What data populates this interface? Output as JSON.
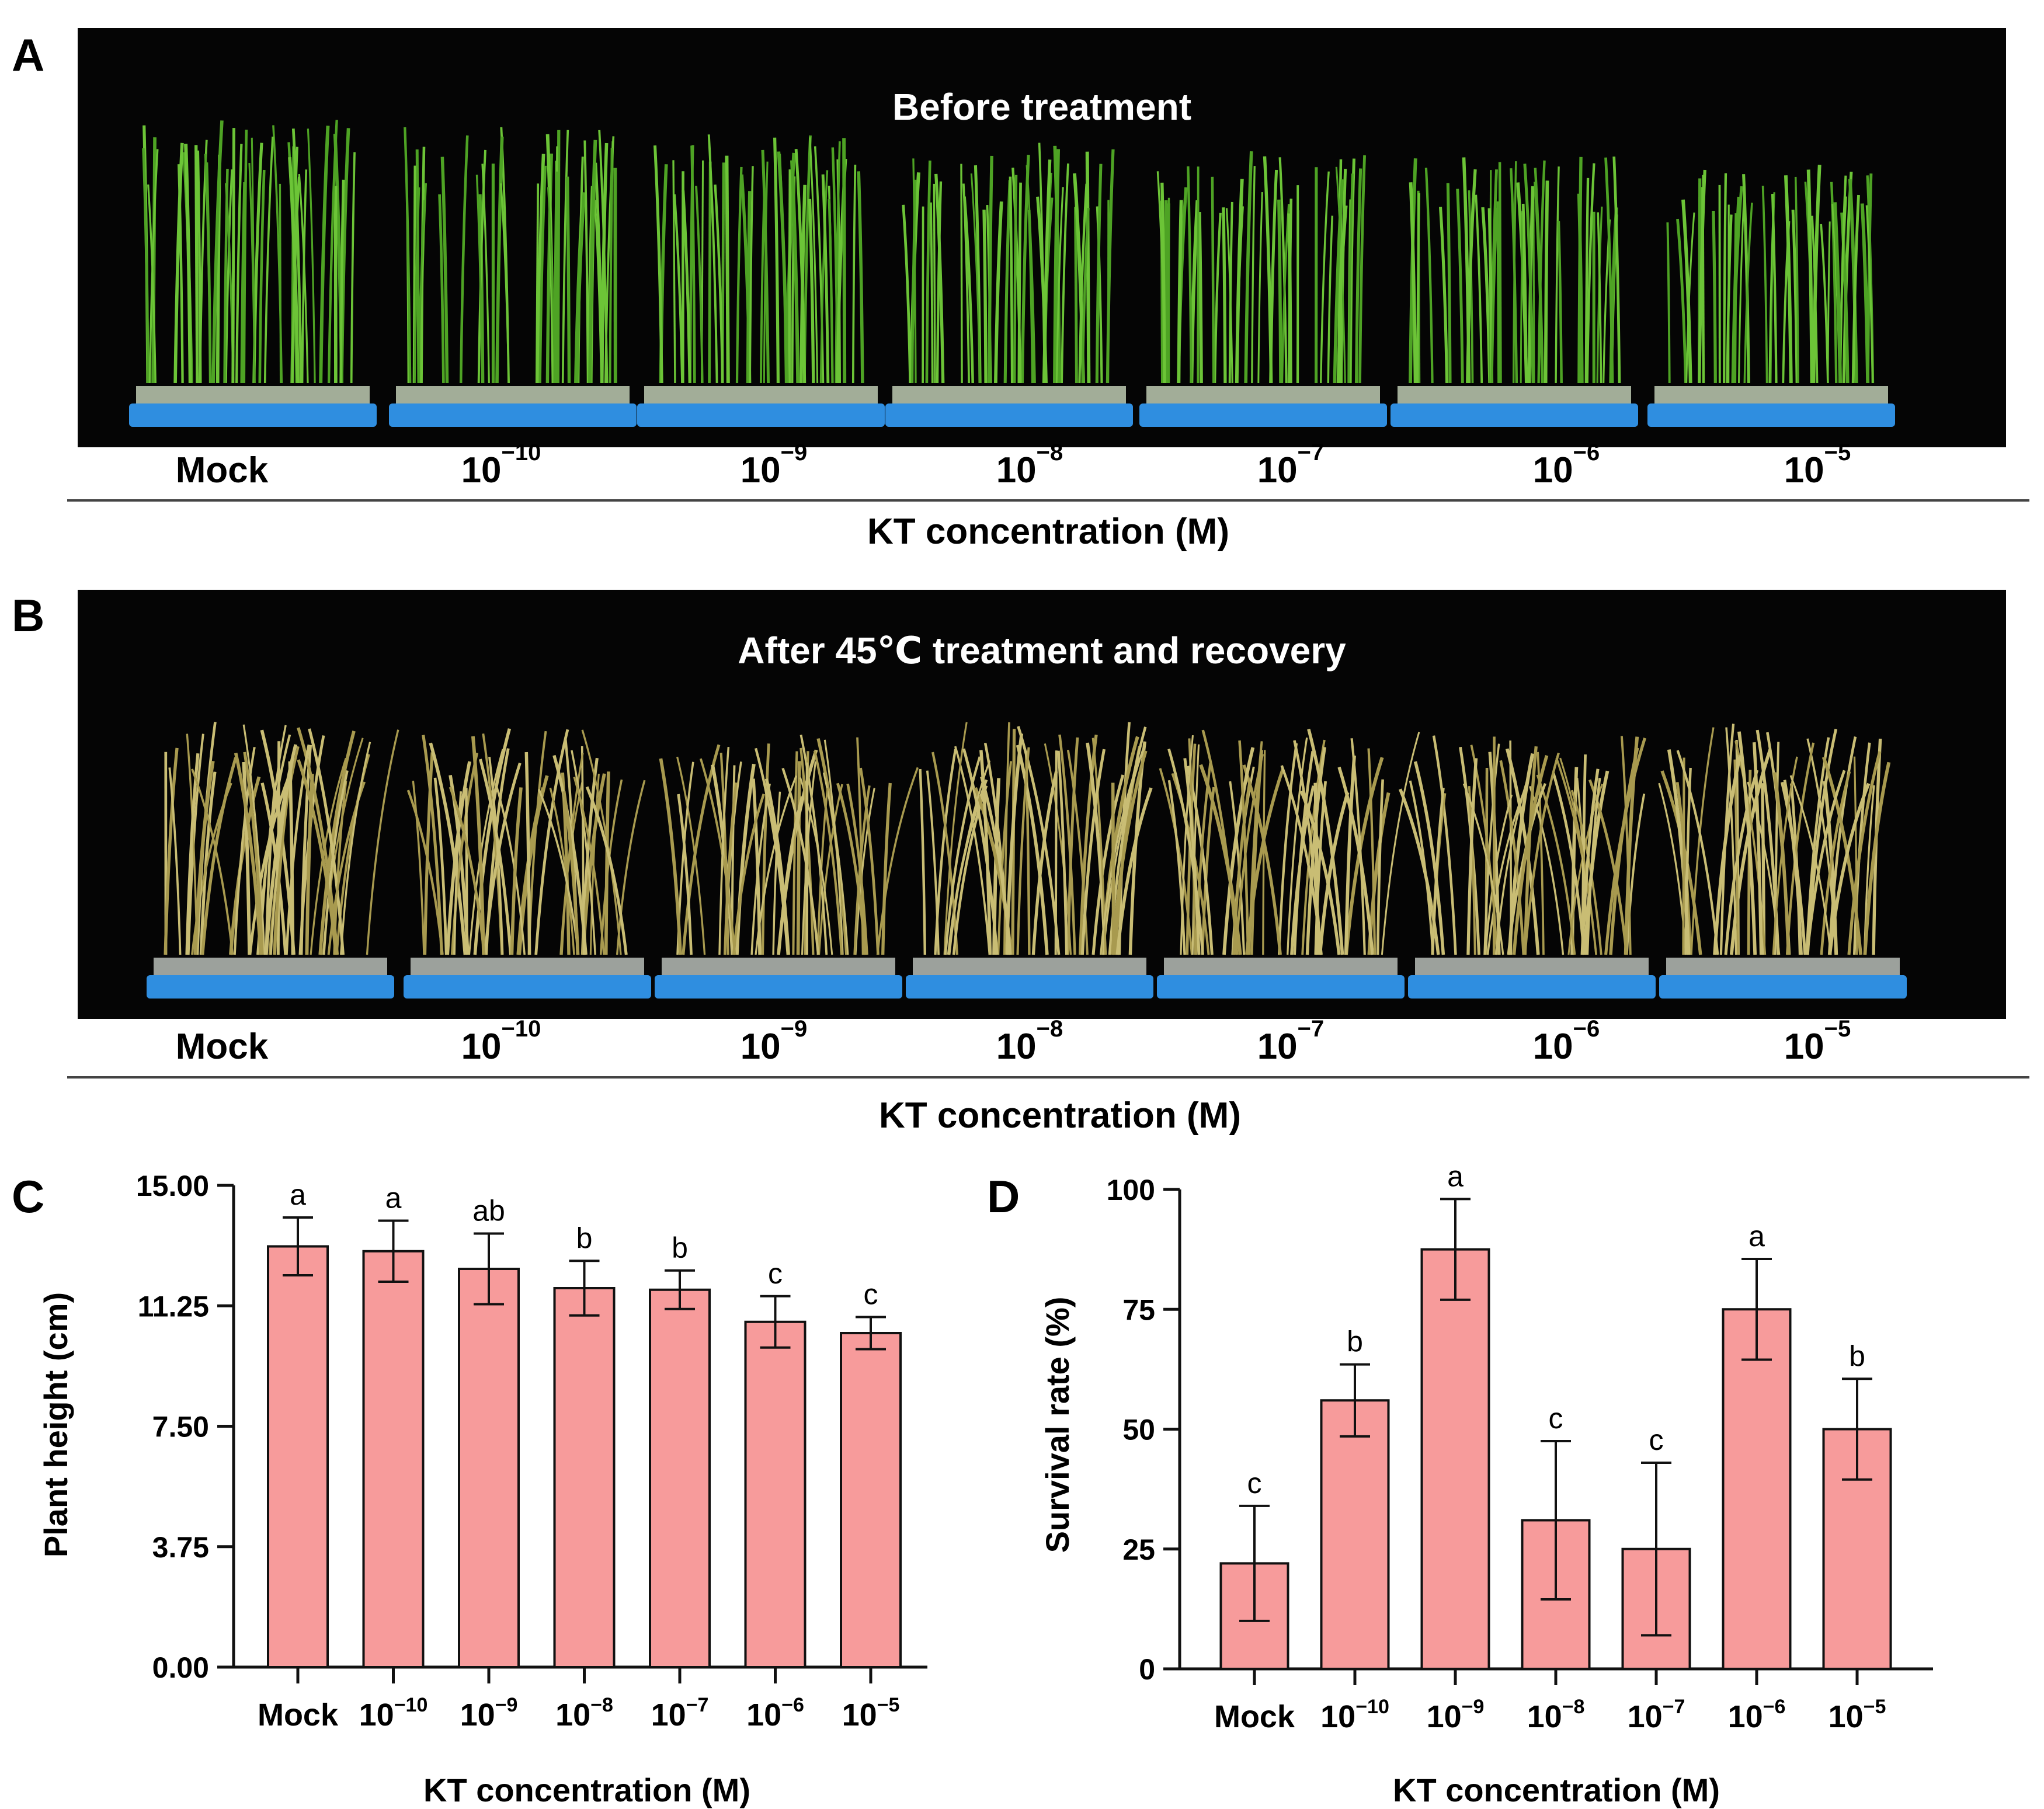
{
  "panels": {
    "A": {
      "letter": "A",
      "title": "Before treatment",
      "condition": "healthy"
    },
    "B": {
      "letter": "B",
      "title": "After 45℃ treatment and recovery",
      "condition": "stressed"
    }
  },
  "photo_labels": [
    {
      "base": "Mock",
      "exp": ""
    },
    {
      "base": "10",
      "exp": "−10"
    },
    {
      "base": "10",
      "exp": "−9"
    },
    {
      "base": "10",
      "exp": "−8"
    },
    {
      "base": "10",
      "exp": "−7"
    },
    {
      "base": "10",
      "exp": "−6"
    },
    {
      "base": "10",
      "exp": "−5"
    }
  ],
  "photo_axis_title": "KT concentration (M)",
  "colors": {
    "bar_fill": "#f79b9b",
    "bar_stroke": "#111111",
    "photo_background": "#050505",
    "tray": "#2f8ee0",
    "leaf_healthy": "#5fb82c",
    "leaf_stressed": "#b8ad62"
  },
  "chart_data": [
    {
      "panel": "C",
      "type": "bar",
      "categories": [
        "Mock",
        "10−10",
        "10−9",
        "10−8",
        "10−7",
        "10−6",
        "10−5"
      ],
      "category_parts": [
        {
          "base": "Mock",
          "exp": ""
        },
        {
          "base": "10",
          "exp": "−10"
        },
        {
          "base": "10",
          "exp": "−9"
        },
        {
          "base": "10",
          "exp": "−8"
        },
        {
          "base": "10",
          "exp": "−7"
        },
        {
          "base": "10",
          "exp": "−6"
        },
        {
          "base": "10",
          "exp": "−5"
        }
      ],
      "values": [
        13.1,
        12.95,
        12.4,
        11.8,
        11.75,
        10.75,
        10.4
      ],
      "errors": [
        0.9,
        0.95,
        1.1,
        0.85,
        0.6,
        0.8,
        0.5
      ],
      "significance": [
        "a",
        "a",
        "ab",
        "b",
        "b",
        "c",
        "c"
      ],
      "ylim": [
        0,
        15
      ],
      "yticks": [
        "0.00",
        "3.75",
        "7.50",
        "11.25",
        "15.00"
      ],
      "ylabel": "Plant height (cm)",
      "xlabel": "KT concentration (M)"
    },
    {
      "panel": "D",
      "type": "bar",
      "categories": [
        "Mock",
        "10−10",
        "10−9",
        "10−8",
        "10−7",
        "10−6",
        "10−5"
      ],
      "category_parts": [
        {
          "base": "Mock",
          "exp": ""
        },
        {
          "base": "10",
          "exp": "−10"
        },
        {
          "base": "10",
          "exp": "−9"
        },
        {
          "base": "10",
          "exp": "−8"
        },
        {
          "base": "10",
          "exp": "−7"
        },
        {
          "base": "10",
          "exp": "−6"
        },
        {
          "base": "10",
          "exp": "−5"
        }
      ],
      "values": [
        22,
        56,
        87.5,
        31,
        25,
        75,
        50
      ],
      "errors": [
        12,
        7.5,
        10.5,
        16.5,
        18,
        10.5,
        10.5
      ],
      "significance": [
        "c",
        "b",
        "a",
        "c",
        "c",
        "a",
        "b"
      ],
      "ylim": [
        0,
        100
      ],
      "yticks": [
        "0",
        "25",
        "50",
        "75",
        "100"
      ],
      "ylabel": "Survival rate (%)",
      "xlabel": "KT concentration (M)"
    }
  ]
}
